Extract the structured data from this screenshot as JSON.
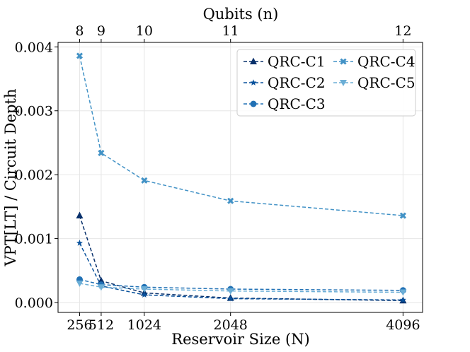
{
  "chart_data": {
    "type": "line",
    "ylabel": "VPT[LT] / Circuit Depth",
    "xlabel": "Reservoir Size (N)",
    "top_xlabel": "Qubits (n)",
    "x": [
      256,
      512,
      1024,
      2048,
      4096
    ],
    "x_tick_labels": [
      "256",
      "512",
      "1024",
      "2048",
      "4096"
    ],
    "top_tick_labels": [
      "8",
      "9",
      "10",
      "11",
      "12"
    ],
    "y_ticks": [
      0.0,
      0.001,
      0.002,
      0.003,
      0.004
    ],
    "y_tick_labels": [
      "0.000",
      "0.001",
      "0.002",
      "0.003",
      "0.004"
    ],
    "xlim": [
      0,
      4328
    ],
    "ylim": [
      -0.000155,
      0.00407
    ],
    "grid": true,
    "legend_position": "top-right",
    "series": [
      {
        "name": "QRC-C1",
        "marker": "triangle",
        "color": "#08306b",
        "values": [
          0.00136,
          0.00034,
          0.00015,
          7e-05,
          3e-05
        ]
      },
      {
        "name": "QRC-C2",
        "marker": "star",
        "color": "#08519c",
        "values": [
          0.00093,
          0.00026,
          0.00012,
          6e-05,
          4e-05
        ]
      },
      {
        "name": "QRC-C3",
        "marker": "circle",
        "color": "#2171b5",
        "values": [
          0.00036,
          0.00028,
          0.00024,
          0.00021,
          0.00019
        ]
      },
      {
        "name": "QRC-C4",
        "marker": "x-thick",
        "color": "#4292c6",
        "values": [
          0.00386,
          0.00234,
          0.00191,
          0.00159,
          0.00136
        ]
      },
      {
        "name": "QRC-C5",
        "marker": "triangle-down",
        "color": "#6baed6",
        "values": [
          0.0003,
          0.00024,
          0.00021,
          0.00018,
          0.00016
        ]
      }
    ]
  }
}
